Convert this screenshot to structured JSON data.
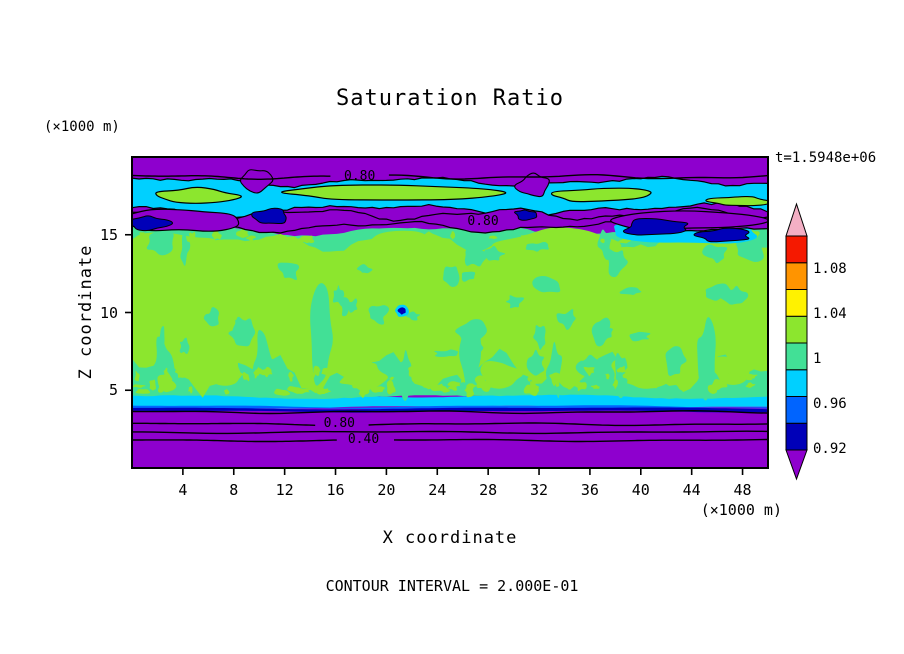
{
  "title": "Saturation Ratio",
  "annotations": {
    "time_label": "t=1.5948e+06",
    "contour_interval_label": "CONTOUR INTERVAL = 2.000E-01",
    "y_units": "(×1000 m)",
    "x_units": "(×1000 m)"
  },
  "colors": {
    "purple": "#8E00CE",
    "navy": "#0000B8",
    "blue": "#0064FF",
    "cyan": "#00D0FF",
    "spring_green": "#42E096",
    "yellow_green": "#8CE62E",
    "yellow": "#FFF200",
    "orange": "#FF9400",
    "red": "#F51900",
    "pink": "#F3AFC4",
    "contour_line": "#000000",
    "frame": "#000000",
    "background": "#FFFFFF"
  },
  "colorbar": {
    "tick_labels": [
      "1.08",
      "1.04",
      "1",
      "0.96",
      "0.92"
    ],
    "segment_colors_bottom_to_top": [
      "navy",
      "blue",
      "cyan",
      "spring_green",
      "yellow_green",
      "yellow",
      "orange",
      "red"
    ],
    "arrow_bottom_color": "purple",
    "arrow_top_color": "pink"
  },
  "chart_data": {
    "type": "heatmap",
    "subtype": "filled-contour-plot",
    "title": "Saturation Ratio",
    "xlabel": "X coordinate",
    "ylabel": "Z coordinate",
    "x_units": "(×1000 m)",
    "y_units": "(×1000 m)",
    "xlim": [
      0,
      50
    ],
    "ylim": [
      0,
      20
    ],
    "x_ticks": [
      4,
      8,
      12,
      16,
      20,
      24,
      28,
      32,
      36,
      40,
      44,
      48
    ],
    "y_ticks": [
      5,
      10,
      15
    ],
    "time_annotation": "t=1.5948e+06",
    "contour_interval": 0.2,
    "colorbar_ticks": [
      1.08,
      1.04,
      1,
      0.96,
      0.92
    ],
    "color_levels": [
      {
        "range": "> 1.12",
        "color_key": "pink"
      },
      {
        "range": "1.08 - 1.12",
        "color_key": "red"
      },
      {
        "range": "1.04 - 1.08",
        "color_key": "orange"
      },
      {
        "range": "~1.04",
        "color_key": "yellow"
      },
      {
        "range": "1.00 - 1.04",
        "color_key": "yellow_green"
      },
      {
        "range": "0.96 - 1.00",
        "color_key": "spring_green"
      },
      {
        "range": "0.92 - 0.96",
        "color_key": "cyan"
      },
      {
        "range": "0.90 - 0.92",
        "color_key": "blue"
      },
      {
        "range": "0.88 - 0.90",
        "color_key": "navy"
      },
      {
        "range": "< 0.88",
        "color_key": "purple"
      }
    ],
    "contour_line_labels": [
      {
        "level": "0.80",
        "x": 17.9,
        "z": 18.72
      },
      {
        "level": "0.80",
        "x": 27.6,
        "z": 15.85
      },
      {
        "level": "0.80",
        "x": 16.3,
        "z": 2.82
      },
      {
        "level": "0.40",
        "x": 18.2,
        "z": 1.78
      }
    ],
    "regions": [
      {
        "name": "top-purple-band",
        "z_top": 20,
        "z_bottom": 18.45,
        "value_range": "< 0.88",
        "description": "uniform low-saturation layer crossed by the 0.80 contour line"
      },
      {
        "name": "upper-cyan-green-band",
        "z_top": 18.45,
        "z_bottom": 16.6,
        "value_range": "0.92 - 1.04",
        "description": "cyan band containing elongated yellow-green blobs outlined by black contours"
      },
      {
        "name": "upper-purple-streak",
        "z_top": 16.6,
        "z_bottom": 15.4,
        "value_range": "< 0.92",
        "description": "wavy purple streak with dark navy patches, labeled 0.80"
      },
      {
        "name": "main-band",
        "z_top": 15.3,
        "z_bottom": 4.6,
        "value_range": "0.96 - 1.04",
        "description": "spring-green background with ragged yellow-green blob regions"
      },
      {
        "name": "lower-cyan-band",
        "z_top": 4.6,
        "z_bottom": 3.8,
        "value_range": "0.90 - 0.96",
        "description": "thin cyan band with blue/navy transition below"
      },
      {
        "name": "bottom-purple-band",
        "z_top": 3.8,
        "z_bottom": 0,
        "value_range": "< 0.88",
        "description": "low-saturation layer crossed by 0.80 and 0.40 contour lines"
      }
    ]
  }
}
